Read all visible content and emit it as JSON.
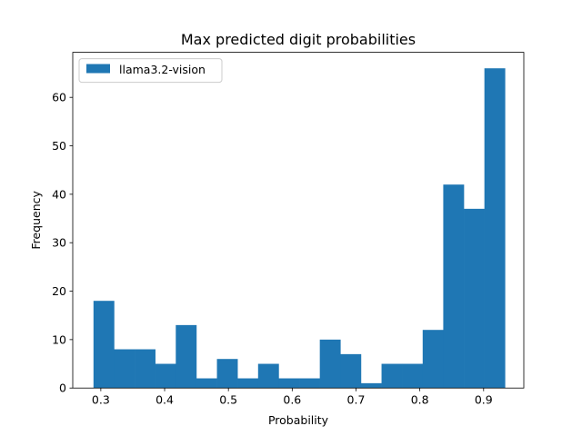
{
  "chart_data": {
    "type": "bar",
    "title": "Max predicted digit probabilities",
    "xlabel": "Probability",
    "ylabel": "Frequency",
    "xlim": [
      0.256,
      0.963
    ],
    "ylim": [
      0,
      69.3
    ],
    "xticks": [
      0.3,
      0.4,
      0.5,
      0.6,
      0.7,
      0.8,
      0.9
    ],
    "yticks": [
      0,
      10,
      20,
      30,
      40,
      50,
      60
    ],
    "grid": false,
    "legend_position": "top-left",
    "bin_start": 0.2885,
    "bin_width": 0.03225,
    "series": [
      {
        "name": "llama3.2-vision",
        "color": "#1f77b4",
        "values": [
          18,
          8,
          8,
          5,
          13,
          2,
          6,
          2,
          5,
          2,
          2,
          10,
          7,
          1,
          5,
          5,
          12,
          42,
          37,
          66
        ]
      }
    ]
  }
}
